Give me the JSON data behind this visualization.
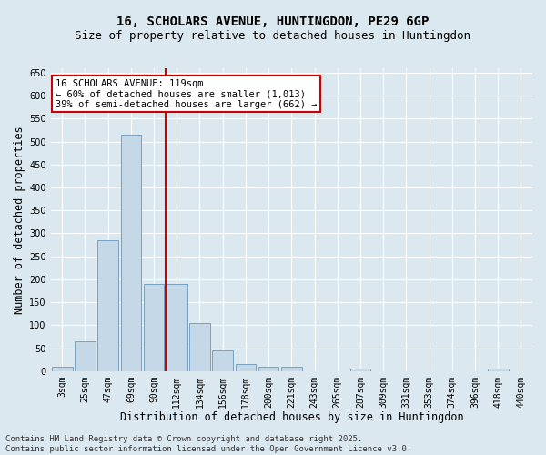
{
  "title_line1": "16, SCHOLARS AVENUE, HUNTINGDON, PE29 6GP",
  "title_line2": "Size of property relative to detached houses in Huntingdon",
  "xlabel": "Distribution of detached houses by size in Huntingdon",
  "ylabel": "Number of detached properties",
  "categories": [
    "3sqm",
    "25sqm",
    "47sqm",
    "69sqm",
    "90sqm",
    "112sqm",
    "134sqm",
    "156sqm",
    "178sqm",
    "200sqm",
    "221sqm",
    "243sqm",
    "265sqm",
    "287sqm",
    "309sqm",
    "331sqm",
    "353sqm",
    "374sqm",
    "396sqm",
    "418sqm",
    "440sqm"
  ],
  "values": [
    10,
    65,
    285,
    515,
    190,
    190,
    105,
    45,
    15,
    10,
    10,
    0,
    0,
    5,
    0,
    0,
    0,
    0,
    0,
    5,
    0
  ],
  "bar_color": "#c5d8e8",
  "bar_edge_color": "#6898b8",
  "vline_color": "#cc0000",
  "vline_pos": 4.5,
  "ylim": [
    0,
    660
  ],
  "yticks": [
    0,
    50,
    100,
    150,
    200,
    250,
    300,
    350,
    400,
    450,
    500,
    550,
    600,
    650
  ],
  "annotation_title": "16 SCHOLARS AVENUE: 119sqm",
  "annotation_line2": "← 60% of detached houses are smaller (1,013)",
  "annotation_line3": "39% of semi-detached houses are larger (662) →",
  "annotation_box_color": "#cc0000",
  "footer_line1": "Contains HM Land Registry data © Crown copyright and database right 2025.",
  "footer_line2": "Contains public sector information licensed under the Open Government Licence v3.0.",
  "background_color": "#dce8f0",
  "plot_bg_color": "#dce8f0",
  "grid_color": "#ffffff",
  "title_fontsize": 10,
  "subtitle_fontsize": 9,
  "axis_label_fontsize": 8.5,
  "tick_fontsize": 7,
  "annotation_fontsize": 7.5,
  "footer_fontsize": 6.5
}
